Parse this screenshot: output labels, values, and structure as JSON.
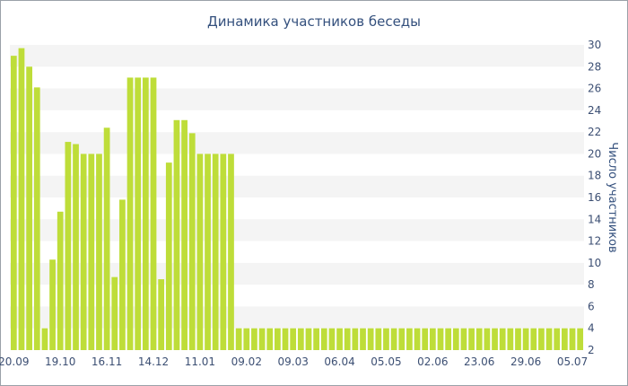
{
  "chart_data": {
    "type": "bar",
    "title": "Динамика участников беседы",
    "ylabel": "Число участников",
    "xlabel": "",
    "ylim": [
      2,
      30
    ],
    "yticks": [
      2,
      4,
      6,
      8,
      10,
      12,
      14,
      16,
      18,
      20,
      22,
      24,
      26,
      28,
      30
    ],
    "y_axis_position": "right",
    "grid": "horizontal alternating bands",
    "bar_color": "#bedd39",
    "band_color": "#f4f4f4",
    "xtick_labels": [
      {
        "label": "20.09",
        "index": 0
      },
      {
        "label": "19.10",
        "index": 6
      },
      {
        "label": "16.11",
        "index": 12
      },
      {
        "label": "14.12",
        "index": 18
      },
      {
        "label": "11.01",
        "index": 24
      },
      {
        "label": "09.02",
        "index": 30
      },
      {
        "label": "09.03",
        "index": 36
      },
      {
        "label": "06.04",
        "index": 42
      },
      {
        "label": "05.05",
        "index": 48
      },
      {
        "label": "02.06",
        "index": 54
      },
      {
        "label": "23.06",
        "index": 60
      },
      {
        "label": "29.06",
        "index": 66
      },
      {
        "label": "05.07",
        "index": 72
      }
    ],
    "values": [
      29,
      29.7,
      28,
      26.1,
      4,
      10.3,
      14.7,
      21.1,
      20.9,
      20,
      20,
      20,
      22.4,
      8.7,
      15.8,
      27,
      27,
      27,
      27,
      8.5,
      19.2,
      23.1,
      23.1,
      21.9,
      20,
      20,
      20,
      20,
      20,
      4,
      4,
      4,
      4,
      4,
      4,
      4,
      4,
      4,
      4,
      4,
      4,
      4,
      4,
      4,
      4,
      4,
      4,
      4,
      4,
      4,
      4,
      4,
      4,
      4,
      4,
      4,
      4,
      4,
      4,
      4,
      4,
      4,
      4,
      4,
      4,
      4,
      4,
      4,
      4,
      4,
      4,
      4,
      4,
      4
    ]
  }
}
